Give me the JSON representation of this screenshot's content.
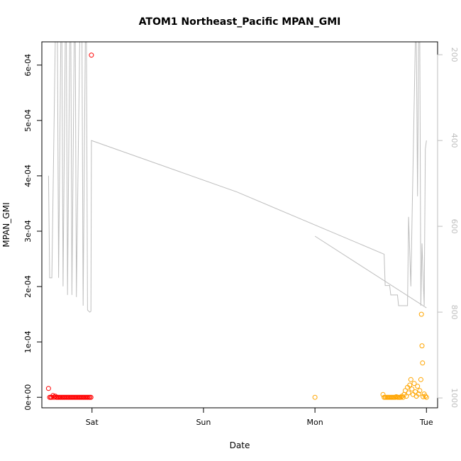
{
  "chart_data": {
    "type": "scatter",
    "title": "ATOM1 Northeast_Pacific MPAN_GMI",
    "xlabel": "Date",
    "ylabel": "MPAN_GMI",
    "xlim": [
      -0.45,
      3.1
    ],
    "ylim": [
      -1.9e-05,
      0.000642
    ],
    "x_ticks": [
      {
        "value": 0,
        "label": "Sat"
      },
      {
        "value": 1,
        "label": "Sun"
      },
      {
        "value": 2,
        "label": "Mon"
      },
      {
        "value": 3,
        "label": "Tue"
      }
    ],
    "y_ticks": [
      {
        "value": 0,
        "label": "0e+00"
      },
      {
        "value": 0.0001,
        "label": "1e-04"
      },
      {
        "value": 0.0002,
        "label": "2e-04"
      },
      {
        "value": 0.0003,
        "label": "3e-04"
      },
      {
        "value": 0.0004,
        "label": "4e-04"
      },
      {
        "value": 0.0005,
        "label": "5e-04"
      },
      {
        "value": 0.0006,
        "label": "6e-04"
      }
    ],
    "right_axis": {
      "label": "",
      "lim": [
        1023,
        170
      ],
      "color": "#bebebe",
      "ticks": [
        {
          "value": 200,
          "label": "200"
        },
        {
          "value": 400,
          "label": "400"
        },
        {
          "value": 600,
          "label": "600"
        },
        {
          "value": 800,
          "label": "800"
        },
        {
          "value": 1000,
          "label": "1000"
        }
      ]
    },
    "series": [
      {
        "type": "line",
        "axis": "right",
        "color": "#bebebe",
        "segments": [
          [
            [
              -0.39,
              482
            ],
            [
              -0.38,
              720
            ],
            [
              -0.36,
              720
            ],
            [
              -0.33,
              170
            ],
            [
              -0.31,
              170
            ],
            [
              -0.3,
              720
            ],
            [
              -0.28,
              170
            ],
            [
              -0.27,
              170
            ],
            [
              -0.26,
              740
            ],
            [
              -0.24,
              170
            ],
            [
              -0.23,
              170
            ],
            [
              -0.22,
              760
            ],
            [
              -0.2,
              170
            ],
            [
              -0.19,
              170
            ],
            [
              -0.18,
              760
            ],
            [
              -0.16,
              170
            ],
            [
              -0.15,
              170
            ],
            [
              -0.14,
              765
            ],
            [
              -0.11,
              170
            ],
            [
              -0.09,
              170
            ],
            [
              -0.08,
              785
            ],
            [
              -0.06,
              170
            ],
            [
              -0.05,
              170
            ],
            [
              -0.04,
              795
            ],
            [
              -0.02,
              800
            ],
            [
              -0.01,
              798
            ],
            [
              -0.005,
              400
            ],
            [
              1.3,
              520
            ],
            [
              2.62,
              665
            ],
            [
              2.63,
              738
            ],
            [
              2.67,
              738
            ],
            [
              2.68,
              760
            ],
            [
              2.74,
              760
            ],
            [
              2.75,
              785
            ],
            [
              2.83,
              785
            ],
            [
              2.84,
              578
            ],
            [
              2.86,
              740
            ],
            [
              2.87,
              600
            ],
            [
              2.9,
              170
            ],
            [
              2.91,
              170
            ],
            [
              2.92,
              530
            ],
            [
              2.93,
              170
            ],
            [
              2.94,
              170
            ],
            [
              2.95,
              785
            ],
            [
              2.96,
              640
            ],
            [
              2.98,
              785
            ],
            [
              2.99,
              420
            ],
            [
              3.0,
              400
            ]
          ],
          [
            [
              2.0,
              623
            ],
            [
              3.0,
              790
            ]
          ]
        ]
      },
      {
        "type": "points",
        "axis": "left",
        "color": "#ff0000",
        "points": [
          [
            -0.39,
            1.6e-05
          ],
          [
            -0.38,
            0.0
          ],
          [
            -0.37,
            0.0
          ],
          [
            -0.36,
            0.0
          ],
          [
            -0.35,
            3e-06
          ],
          [
            -0.34,
            0.0
          ],
          [
            -0.33,
            2e-06
          ],
          [
            -0.32,
            0.0
          ],
          [
            -0.31,
            0.0
          ],
          [
            -0.3,
            0.0
          ],
          [
            -0.29,
            0.0
          ],
          [
            -0.28,
            0.0
          ],
          [
            -0.27,
            0.0
          ],
          [
            -0.26,
            0.0
          ],
          [
            -0.25,
            0.0
          ],
          [
            -0.24,
            0.0
          ],
          [
            -0.23,
            0.0
          ],
          [
            -0.22,
            0.0
          ],
          [
            -0.21,
            0.0
          ],
          [
            -0.2,
            0.0
          ],
          [
            -0.19,
            0.0
          ],
          [
            -0.18,
            0.0
          ],
          [
            -0.17,
            0.0
          ],
          [
            -0.16,
            0.0
          ],
          [
            -0.15,
            0.0
          ],
          [
            -0.14,
            0.0
          ],
          [
            -0.13,
            0.0
          ],
          [
            -0.12,
            0.0
          ],
          [
            -0.11,
            0.0
          ],
          [
            -0.1,
            0.0
          ],
          [
            -0.09,
            0.0
          ],
          [
            -0.08,
            0.0
          ],
          [
            -0.07,
            0.0
          ],
          [
            -0.06,
            0.0
          ],
          [
            -0.05,
            0.0
          ],
          [
            -0.04,
            0.0
          ],
          [
            -0.03,
            0.0
          ],
          [
            -0.02,
            0.0
          ],
          [
            -0.01,
            0.0
          ],
          [
            -0.005,
            0.000618
          ]
        ]
      },
      {
        "type": "points",
        "axis": "left",
        "color": "#ffa500",
        "points": [
          [
            2.0,
            0.0
          ],
          [
            2.61,
            5e-06
          ],
          [
            2.62,
            0.0
          ],
          [
            2.63,
            0.0
          ],
          [
            2.64,
            0.0
          ],
          [
            2.65,
            0.0
          ],
          [
            2.66,
            0.0
          ],
          [
            2.67,
            0.0
          ],
          [
            2.68,
            0.0
          ],
          [
            2.69,
            0.0
          ],
          [
            2.7,
            0.0
          ],
          [
            2.71,
            0.0
          ],
          [
            2.72,
            0.0
          ],
          [
            2.73,
            1e-06
          ],
          [
            2.74,
            0.0
          ],
          [
            2.75,
            0.0
          ],
          [
            2.76,
            0.0
          ],
          [
            2.77,
            0.0
          ],
          [
            2.78,
            2e-06
          ],
          [
            2.79,
            0.0
          ],
          [
            2.8,
            5e-06
          ],
          [
            2.81,
            1.2e-05
          ],
          [
            2.82,
            2e-06
          ],
          [
            2.83,
            1.8e-05
          ],
          [
            2.84,
            8e-06
          ],
          [
            2.85,
            2.2e-05
          ],
          [
            2.86,
            3.2e-05
          ],
          [
            2.87,
            1.5e-05
          ],
          [
            2.88,
            5e-06
          ],
          [
            2.89,
            2.5e-05
          ],
          [
            2.9,
            1e-05
          ],
          [
            2.91,
            2e-06
          ],
          [
            2.92,
            2e-05
          ],
          [
            2.93,
            6e-06
          ],
          [
            2.94,
            1.2e-05
          ],
          [
            2.95,
            3.2e-05
          ],
          [
            2.955,
            0.00015
          ],
          [
            2.96,
            9.3e-05
          ],
          [
            2.965,
            6.2e-05
          ],
          [
            2.97,
            1e-06
          ],
          [
            2.98,
            6e-06
          ],
          [
            2.99,
            2e-06
          ],
          [
            3.0,
            0.0
          ]
        ]
      }
    ]
  }
}
